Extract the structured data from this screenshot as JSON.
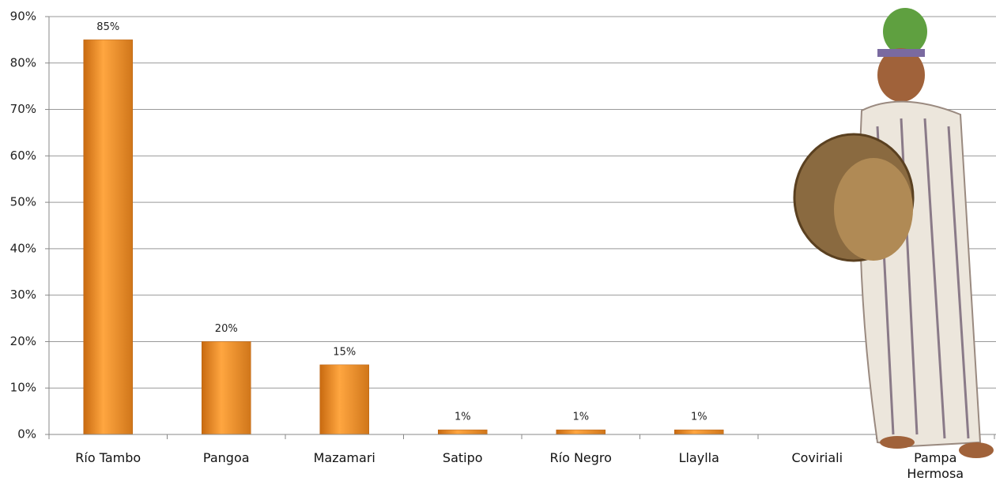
{
  "chart_data": {
    "type": "bar",
    "categories": [
      "Río Tambo",
      "Pangoa",
      "Mazamari",
      "Satipo",
      "Río Negro",
      "Llaylla",
      "Coviriali",
      "Pampa Hermosa"
    ],
    "values": [
      85,
      20,
      15,
      1,
      1,
      1,
      null,
      null
    ],
    "value_labels": [
      "85%",
      "20%",
      "15%",
      "1%",
      "1%",
      "1%",
      null,
      null
    ],
    "color": "#f0901e",
    "ylim": [
      0,
      90
    ],
    "yticks": [
      {
        "value": 0,
        "label": "0%"
      },
      {
        "value": 10,
        "label": "10%"
      },
      {
        "value": 20,
        "label": "20%"
      },
      {
        "value": 30,
        "label": "30%"
      },
      {
        "value": 40,
        "label": "40%"
      },
      {
        "value": 50,
        "label": "50%"
      },
      {
        "value": 60,
        "label": "60%"
      },
      {
        "value": 70,
        "label": "70%"
      },
      {
        "value": 80,
        "label": "80%"
      },
      {
        "value": 90,
        "label": "90%"
      }
    ],
    "grid": true
  }
}
